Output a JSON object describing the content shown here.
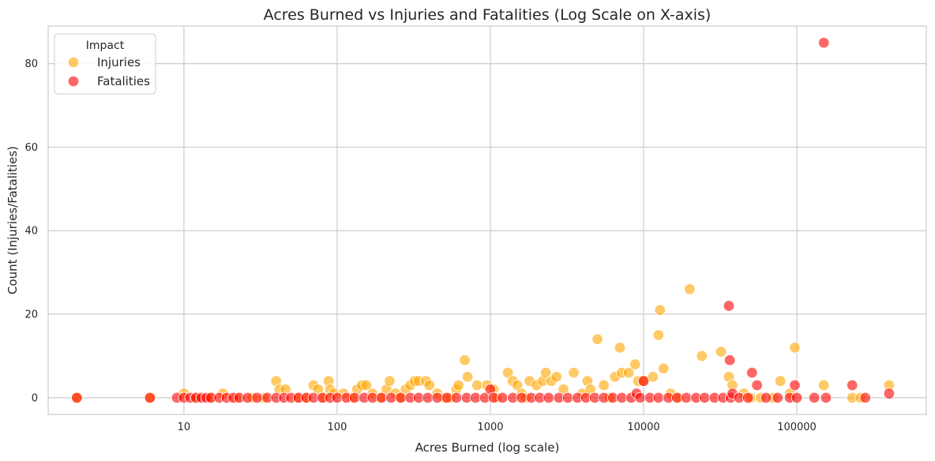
{
  "chart_data": {
    "type": "scatter",
    "title": "Acres Burned vs Injuries and Fatalities (Log Scale on X-axis)",
    "xlabel": "Acres Burned (log scale)",
    "ylabel": "Count (Injuries/Fatalities)",
    "xscale": "log",
    "xlim": [
      1.3,
      700000
    ],
    "ylim": [
      -4,
      89
    ],
    "xticks": [
      10,
      100,
      1000,
      10000,
      100000
    ],
    "xtick_labels": [
      "10",
      "100",
      "1000",
      "10000",
      "100000"
    ],
    "yticks": [
      0,
      20,
      40,
      60,
      80
    ],
    "ytick_labels": [
      "0",
      "20",
      "40",
      "60",
      "80"
    ],
    "grid": true,
    "legend": {
      "title": "Impact",
      "placement": "top-left",
      "entries": [
        "Injuries",
        "Fatalities"
      ]
    },
    "series": [
      {
        "name": "Injuries",
        "color": "#ffa500",
        "points": [
          [
            2,
            0
          ],
          [
            6,
            0
          ],
          [
            10,
            1
          ],
          [
            12,
            0
          ],
          [
            15,
            0
          ],
          [
            18,
            1
          ],
          [
            22,
            0
          ],
          [
            28,
            0
          ],
          [
            33,
            0
          ],
          [
            40,
            4
          ],
          [
            42,
            2
          ],
          [
            46,
            2
          ],
          [
            55,
            0
          ],
          [
            62,
            0
          ],
          [
            70,
            3
          ],
          [
            75,
            2
          ],
          [
            82,
            0
          ],
          [
            88,
            4
          ],
          [
            90,
            2
          ],
          [
            95,
            1
          ],
          [
            110,
            1
          ],
          [
            125,
            0
          ],
          [
            135,
            2
          ],
          [
            145,
            3
          ],
          [
            155,
            3
          ],
          [
            170,
            1
          ],
          [
            190,
            0
          ],
          [
            210,
            2
          ],
          [
            220,
            4
          ],
          [
            240,
            1
          ],
          [
            260,
            0
          ],
          [
            280,
            2
          ],
          [
            300,
            3
          ],
          [
            320,
            4
          ],
          [
            340,
            4
          ],
          [
            380,
            4
          ],
          [
            400,
            3
          ],
          [
            450,
            1
          ],
          [
            500,
            0
          ],
          [
            550,
            0
          ],
          [
            600,
            2
          ],
          [
            620,
            3
          ],
          [
            680,
            9
          ],
          [
            710,
            5
          ],
          [
            820,
            3
          ],
          [
            950,
            3
          ],
          [
            1050,
            2
          ],
          [
            1100,
            0
          ],
          [
            1300,
            6
          ],
          [
            1400,
            4
          ],
          [
            1500,
            3
          ],
          [
            1600,
            1
          ],
          [
            1700,
            0
          ],
          [
            1800,
            4
          ],
          [
            2000,
            3
          ],
          [
            2200,
            4
          ],
          [
            2300,
            6
          ],
          [
            2500,
            4
          ],
          [
            2700,
            5
          ],
          [
            3000,
            2
          ],
          [
            3500,
            6
          ],
          [
            4000,
            1
          ],
          [
            4300,
            4
          ],
          [
            4500,
            2
          ],
          [
            5000,
            14
          ],
          [
            5500,
            3
          ],
          [
            6000,
            0
          ],
          [
            6500,
            5
          ],
          [
            7000,
            12
          ],
          [
            7200,
            6
          ],
          [
            8000,
            6
          ],
          [
            8800,
            8
          ],
          [
            9200,
            4
          ],
          [
            10000,
            4
          ],
          [
            11500,
            5
          ],
          [
            12500,
            15
          ],
          [
            12800,
            21
          ],
          [
            13500,
            7
          ],
          [
            15000,
            1
          ],
          [
            17000,
            0
          ],
          [
            20000,
            26
          ],
          [
            24000,
            10
          ],
          [
            32000,
            11
          ],
          [
            36000,
            5
          ],
          [
            38000,
            3
          ],
          [
            45000,
            1
          ],
          [
            50000,
            0
          ],
          [
            58000,
            0
          ],
          [
            70000,
            0
          ],
          [
            78000,
            4
          ],
          [
            90000,
            1
          ],
          [
            97000,
            12
          ],
          [
            150000,
            3
          ],
          [
            230000,
            0
          ],
          [
            260000,
            0
          ],
          [
            400000,
            3
          ]
        ]
      },
      {
        "name": "Fatalities",
        "color": "#ff0000",
        "points": [
          [
            2,
            0
          ],
          [
            6,
            0
          ],
          [
            9,
            0
          ],
          [
            10,
            0
          ],
          [
            11,
            0
          ],
          [
            12,
            0
          ],
          [
            13,
            0
          ],
          [
            14,
            0
          ],
          [
            15,
            0
          ],
          [
            17,
            0
          ],
          [
            19,
            0
          ],
          [
            21,
            0
          ],
          [
            23,
            0
          ],
          [
            26,
            0
          ],
          [
            30,
            0
          ],
          [
            35,
            0
          ],
          [
            40,
            0
          ],
          [
            45,
            0
          ],
          [
            50,
            0
          ],
          [
            56,
            0
          ],
          [
            63,
            0
          ],
          [
            70,
            0
          ],
          [
            80,
            0
          ],
          [
            90,
            0
          ],
          [
            100,
            0
          ],
          [
            115,
            0
          ],
          [
            130,
            0
          ],
          [
            150,
            0
          ],
          [
            170,
            0
          ],
          [
            195,
            0
          ],
          [
            225,
            0
          ],
          [
            260,
            0
          ],
          [
            300,
            0
          ],
          [
            340,
            0
          ],
          [
            390,
            0
          ],
          [
            450,
            0
          ],
          [
            520,
            0
          ],
          [
            600,
            0
          ],
          [
            700,
            0
          ],
          [
            800,
            0
          ],
          [
            920,
            0
          ],
          [
            1000,
            2
          ],
          [
            1050,
            0
          ],
          [
            1200,
            0
          ],
          [
            1400,
            0
          ],
          [
            1600,
            0
          ],
          [
            1850,
            0
          ],
          [
            2100,
            0
          ],
          [
            2400,
            0
          ],
          [
            2800,
            0
          ],
          [
            3200,
            0
          ],
          [
            3700,
            0
          ],
          [
            4200,
            0
          ],
          [
            4800,
            0
          ],
          [
            5500,
            0
          ],
          [
            6300,
            0
          ],
          [
            7200,
            0
          ],
          [
            8300,
            0
          ],
          [
            9000,
            1
          ],
          [
            9500,
            0
          ],
          [
            10000,
            4
          ],
          [
            11000,
            0
          ],
          [
            12500,
            0
          ],
          [
            14500,
            0
          ],
          [
            16500,
            0
          ],
          [
            19000,
            0
          ],
          [
            22000,
            0
          ],
          [
            25000,
            0
          ],
          [
            29000,
            0
          ],
          [
            33000,
            0
          ],
          [
            36000,
            22
          ],
          [
            36500,
            9
          ],
          [
            37000,
            0
          ],
          [
            38000,
            1
          ],
          [
            42000,
            0
          ],
          [
            48000,
            0
          ],
          [
            51000,
            6
          ],
          [
            55000,
            3
          ],
          [
            63000,
            0
          ],
          [
            75000,
            0
          ],
          [
            90000,
            0
          ],
          [
            97000,
            3
          ],
          [
            100000,
            0
          ],
          [
            130000,
            0
          ],
          [
            150000,
            85
          ],
          [
            155000,
            0
          ],
          [
            230000,
            3
          ],
          [
            280000,
            0
          ],
          [
            400000,
            1
          ]
        ]
      }
    ]
  }
}
